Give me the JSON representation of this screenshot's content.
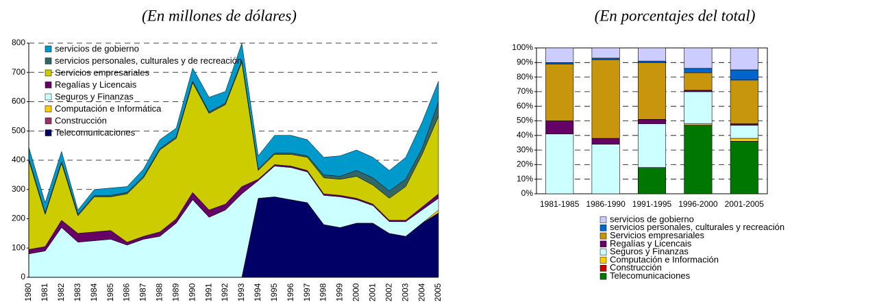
{
  "chart_data": [
    {
      "type": "area",
      "subtitle": "(En millones de dólares)",
      "categories": [
        "1980",
        "1981",
        "1982",
        "1983",
        "1984",
        "1985",
        "1986",
        "1987",
        "1988",
        "1989",
        "1990",
        "1991",
        "1992",
        "1993",
        "1994",
        "1995",
        "1996",
        "1997",
        "1998",
        "1999",
        "2000",
        "2001",
        "2002",
        "2003",
        "2004",
        "2005"
      ],
      "series": [
        {
          "name": "Telecomunicaciones",
          "color": "#000066",
          "values": [
            0,
            0,
            0,
            0,
            0,
            0,
            0,
            0,
            0,
            0,
            0,
            0,
            0,
            0,
            270,
            275,
            265,
            255,
            180,
            170,
            185,
            185,
            150,
            140,
            185,
            220
          ]
        },
        {
          "name": "Construcción",
          "color": "#993366",
          "values": [
            0,
            0,
            0,
            0,
            0,
            0,
            0,
            0,
            0,
            0,
            0,
            0,
            0,
            0,
            0,
            0,
            0,
            0,
            0,
            0,
            0,
            0,
            0,
            0,
            0,
            0
          ]
        },
        {
          "name": "Computación e Informática",
          "color": "#ffcc00",
          "values": [
            0,
            0,
            0,
            0,
            0,
            0,
            0,
            0,
            0,
            0,
            0,
            0,
            0,
            0,
            0,
            0,
            0,
            0,
            0,
            0,
            0,
            0,
            0,
            0,
            0,
            10
          ]
        },
        {
          "name": "Seguros y Finanzas",
          "color": "#ccffff",
          "values": [
            80,
            90,
            170,
            120,
            125,
            130,
            110,
            130,
            140,
            185,
            265,
            205,
            230,
            285,
            60,
            105,
            110,
            105,
            100,
            105,
            80,
            60,
            40,
            50,
            45,
            40
          ]
        },
        {
          "name": "Regalías y Licencais",
          "color": "#660066",
          "values": [
            15,
            15,
            25,
            30,
            30,
            30,
            10,
            10,
            15,
            15,
            25,
            25,
            20,
            25,
            5,
            5,
            5,
            5,
            5,
            5,
            5,
            5,
            5,
            5,
            10,
            15
          ]
        },
        {
          "name": "Servicios empresariales",
          "color": "#cccc00",
          "values": [
            305,
            110,
            195,
            60,
            120,
            115,
            165,
            200,
            280,
            275,
            375,
            330,
            340,
            425,
            30,
            35,
            40,
            45,
            55,
            55,
            75,
            65,
            75,
            115,
            180,
            265
          ]
        },
        {
          "name": "servicios personales, culturales y de recreación",
          "color": "#336666",
          "values": [
            5,
            5,
            5,
            5,
            5,
            5,
            5,
            5,
            5,
            5,
            5,
            5,
            5,
            5,
            5,
            5,
            5,
            5,
            10,
            10,
            20,
            25,
            25,
            25,
            20,
            50
          ]
        },
        {
          "name": "servicios de gobierno",
          "color": "#0099cc",
          "values": [
            40,
            35,
            35,
            15,
            20,
            25,
            20,
            25,
            30,
            30,
            45,
            50,
            40,
            60,
            45,
            60,
            60,
            55,
            60,
            70,
            70,
            70,
            70,
            75,
            90,
            70
          ]
        }
      ],
      "ylim": [
        0,
        800
      ],
      "yticks": [
        0,
        100,
        200,
        300,
        400,
        500,
        600,
        700,
        800
      ],
      "grid": true
    },
    {
      "type": "bar",
      "subtitle": "(En porcentajes del total)",
      "categories": [
        "1981-1985",
        "1986-1990",
        "1991-1995",
        "1996-2000",
        "2001-2005"
      ],
      "series": [
        {
          "name": "Telecomunicaciones",
          "color": "#007700",
          "values": [
            0,
            0,
            18,
            47,
            36
          ]
        },
        {
          "name": "Construcción",
          "color": "#cc0000",
          "values": [
            0,
            0,
            0,
            0,
            0
          ]
        },
        {
          "name": "Computación e Información",
          "color": "#ffcc00",
          "values": [
            0,
            0,
            0,
            1,
            2
          ]
        },
        {
          "name": "Seguros y Finanzas",
          "color": "#ccffff",
          "values": [
            41,
            34,
            30,
            22,
            9
          ]
        },
        {
          "name": "Regalías y Licencais",
          "color": "#660066",
          "values": [
            9,
            4,
            3,
            1,
            1
          ]
        },
        {
          "name": "Servicios empresariales",
          "color": "#c8960c",
          "values": [
            39,
            54,
            39,
            12,
            30
          ]
        },
        {
          "name": "servicios personales, culturales y recreación",
          "color": "#0066cc",
          "values": [
            1,
            1,
            1,
            3,
            7
          ]
        },
        {
          "name": "servicios de gobierno",
          "color": "#ccccff",
          "values": [
            10,
            7,
            9,
            14,
            15
          ]
        }
      ],
      "ylim": [
        0,
        100
      ],
      "yticks": [
        {
          "value": 0,
          "label": "0%"
        },
        {
          "value": 10,
          "label": "10%"
        },
        {
          "value": 20,
          "label": "20%"
        },
        {
          "value": 30,
          "label": "30%"
        },
        {
          "value": 40,
          "label": "40%"
        },
        {
          "value": 50,
          "label": "50%"
        },
        {
          "value": 60,
          "label": "60%"
        },
        {
          "value": 70,
          "label": "70%"
        },
        {
          "value": 80,
          "label": "80%"
        },
        {
          "value": 90,
          "label": "90%"
        },
        {
          "value": 100,
          "label": "100%"
        }
      ],
      "grid": true
    }
  ]
}
